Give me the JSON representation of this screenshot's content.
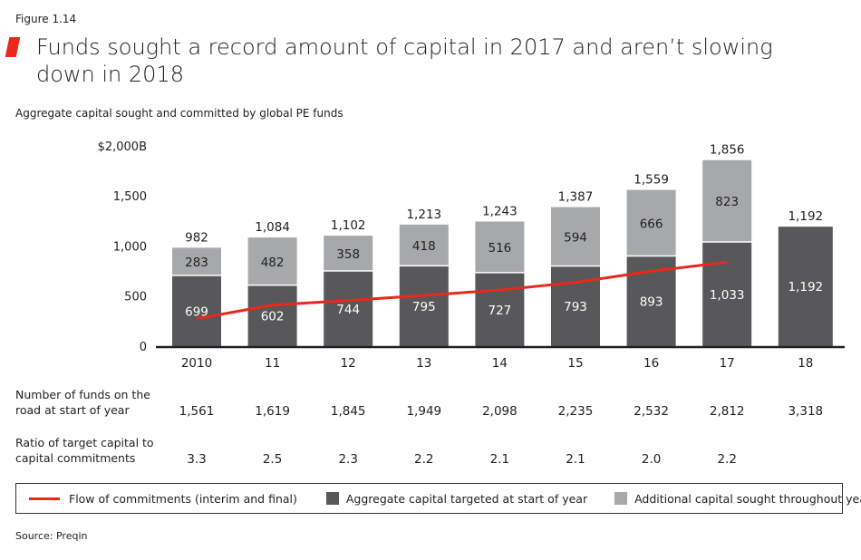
{
  "figure_label": "Figure 1.14",
  "title": "Funds sought a record amount of capital in 2017 and aren’t slowing down in 2018",
  "subtitle": "Aggregate capital sought and committed by global PE funds",
  "source": "Source: Preqin",
  "colors": {
    "accent": "#e8291c",
    "targeted": "#58585a",
    "additional": "#a7a8aa",
    "line": "#e8291c"
  },
  "chart_data": {
    "type": "bar",
    "stacked": true,
    "categories": [
      "2010",
      "11",
      "12",
      "13",
      "14",
      "15",
      "16",
      "17",
      "18"
    ],
    "ylim": [
      0,
      2000
    ],
    "yticks": [
      0,
      500,
      1000,
      1500,
      2000
    ],
    "ytick_labels": [
      "0",
      "500",
      "1,000",
      "1,500",
      "$2,000B"
    ],
    "grid": false,
    "legend_position": "bottom",
    "series": [
      {
        "name": "Aggregate capital targeted at start of year",
        "values": [
          699,
          602,
          744,
          795,
          727,
          793,
          893,
          1033,
          1192
        ],
        "labels": [
          "699",
          "602",
          "744",
          "795",
          "727",
          "793",
          "893",
          "1,033",
          "1,192"
        ]
      },
      {
        "name": "Additional capital sought throughout year",
        "values": [
          283,
          482,
          358,
          418,
          516,
          594,
          666,
          823,
          null
        ],
        "labels": [
          "283",
          "482",
          "358",
          "418",
          "516",
          "594",
          "666",
          "823",
          ""
        ]
      },
      {
        "name": "Flow of commitments (interim and final)",
        "type": "line",
        "values": [
          274,
          410,
          455,
          506,
          560,
          636,
          748,
          838,
          null
        ]
      }
    ],
    "totals": [
      "982",
      "1,084",
      "1,102",
      "1,213",
      "1,243",
      "1,387",
      "1,559",
      "1,856",
      "1,192"
    ]
  },
  "table": {
    "rows": [
      {
        "label": "Number of funds on the road at start of year",
        "values": [
          "1,561",
          "1,619",
          "1,845",
          "1,949",
          "2,098",
          "2,235",
          "2,532",
          "2,812",
          "3,318"
        ]
      },
      {
        "label": "Ratio of target capital to capital commitments",
        "values": [
          "3.3",
          "2.5",
          "2.3",
          "2.2",
          "2.1",
          "2.1",
          "2.0",
          "2.2",
          ""
        ]
      }
    ]
  },
  "legend": [
    "Flow of commitments (interim and final)",
    "Aggregate capital targeted at start of year",
    "Additional capital sought throughout year"
  ]
}
